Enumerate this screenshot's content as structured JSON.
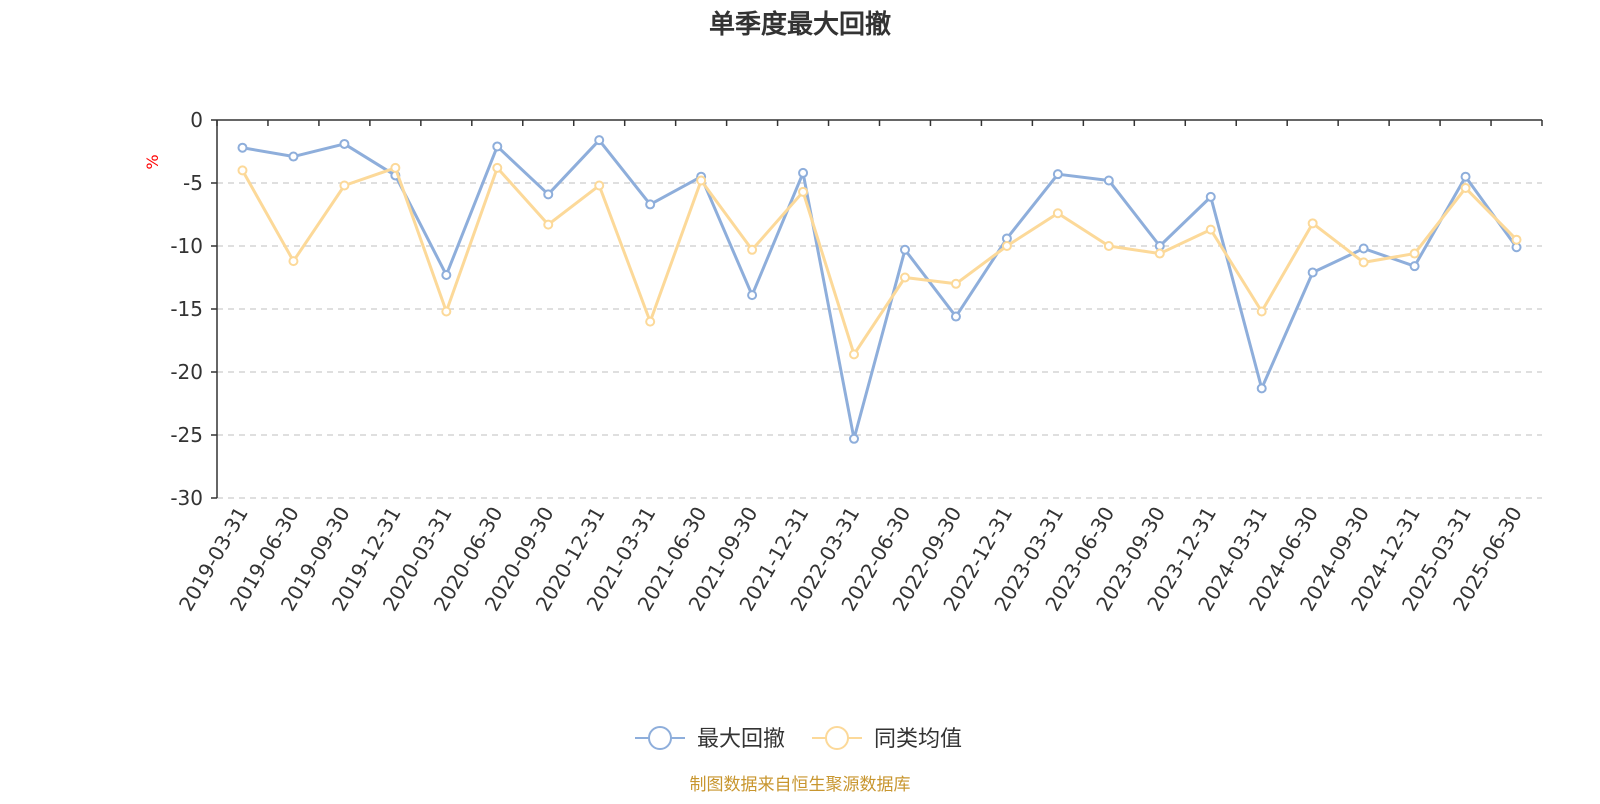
{
  "chart_data": {
    "type": "line",
    "title": "单季度最大回撤",
    "ylabel": "%",
    "ylim": [
      -30,
      0
    ],
    "yticks": [
      0,
      -5,
      -10,
      -15,
      -20,
      -25,
      -30
    ],
    "grid": true,
    "legend_position": "bottom-center",
    "categories": [
      "2019-03-31",
      "2019-06-30",
      "2019-09-30",
      "2019-12-31",
      "2020-03-31",
      "2020-06-30",
      "2020-09-30",
      "2020-12-31",
      "2021-03-31",
      "2021-06-30",
      "2021-09-30",
      "2021-12-31",
      "2022-03-31",
      "2022-06-30",
      "2022-09-30",
      "2022-12-31",
      "2023-03-31",
      "2023-06-30",
      "2023-09-30",
      "2023-12-31",
      "2024-03-31",
      "2024-06-30",
      "2024-09-30",
      "2024-12-31",
      "2025-03-31",
      "2025-06-30"
    ],
    "series": [
      {
        "name": "最大回撤",
        "color": "#8eaedb",
        "values": [
          -2.2,
          -2.9,
          -1.9,
          -4.4,
          -12.3,
          -2.1,
          -5.9,
          -1.6,
          -6.7,
          -4.5,
          -13.9,
          -4.2,
          -25.3,
          -10.3,
          -15.6,
          -9.4,
          -4.3,
          -4.8,
          -10.0,
          -6.1,
          -21.3,
          -12.1,
          -10.2,
          -11.6,
          -4.5,
          -10.1
        ]
      },
      {
        "name": "同类均值",
        "color": "#fcd999",
        "values": [
          -4.0,
          -11.2,
          -5.2,
          -3.8,
          -15.2,
          -3.8,
          -8.3,
          -5.2,
          -16.0,
          -4.8,
          -10.3,
          -5.7,
          -18.6,
          -12.5,
          -13.0,
          -10.0,
          -7.4,
          -10.0,
          -10.6,
          -8.7,
          -15.2,
          -8.2,
          -11.3,
          -10.6,
          -5.4,
          -9.5
        ]
      }
    ],
    "source_note": "制图数据来自恒生聚源数据库"
  },
  "colors": {
    "axis": "#333333",
    "grid": "#cccccc",
    "unit": "#ff0000",
    "source": "#c8962f"
  }
}
